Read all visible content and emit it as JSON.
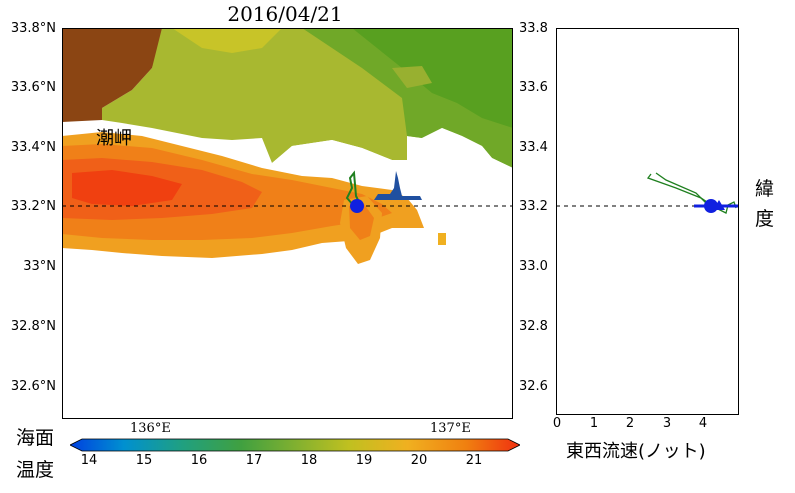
{
  "map": {
    "date": "2016/04/21",
    "lat_ticks": [
      "33.8°N",
      "33.6°N",
      "33.4°N",
      "33.2°N",
      "33°N",
      "32.8°N",
      "32.6°N"
    ],
    "lon_ticks": [
      "136°E",
      "137°E"
    ],
    "place_label": "潮岬",
    "latitude_marker": 33.21
  },
  "colorbar": {
    "title_line1": "海面",
    "title_line2": "温度",
    "ticks": [
      "14",
      "15",
      "16",
      "17",
      "18",
      "19",
      "20",
      "21"
    ],
    "colors": [
      "#0050e0",
      "#0090d0",
      "#20a080",
      "#40a040",
      "#80b030",
      "#c0c020",
      "#f0b020",
      "#f08010",
      "#f03010"
    ]
  },
  "side_plot": {
    "lat_ticks": [
      "33.8",
      "33.6",
      "33.4",
      "33.2",
      "33.0",
      "32.8",
      "32.6"
    ],
    "x_ticks": [
      "0",
      "1",
      "2",
      "3",
      "4"
    ],
    "xlabel": "東西流速(ノット)",
    "ylabel_line1": "緯",
    "ylabel_line2": "度",
    "current_speed_knots": 4.3
  }
}
